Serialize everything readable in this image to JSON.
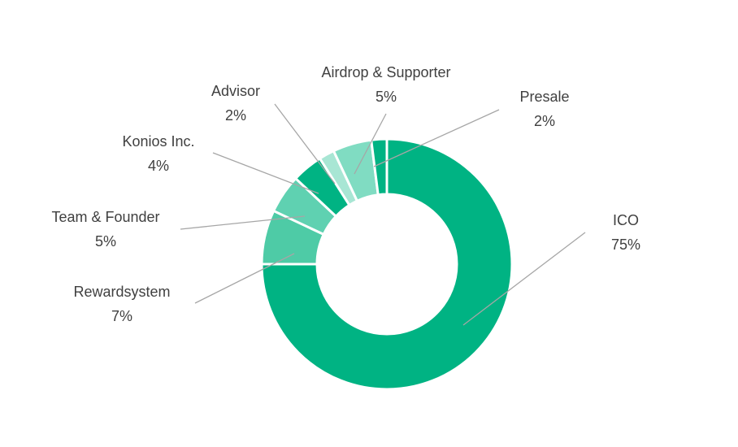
{
  "chart_data": {
    "type": "donut",
    "categories": [
      "ICO",
      "Rewardsystem",
      "Team & Founder",
      "Konios Inc.",
      "Advisor",
      "Airdrop & Supporter",
      "Presale"
    ],
    "values": [
      75,
      7,
      5,
      4,
      2,
      5,
      2
    ],
    "value_labels": [
      "75%",
      "7%",
      "5%",
      "4%",
      "2%",
      "5%",
      "2%"
    ],
    "colors": [
      "#00b383",
      "#4ecba6",
      "#5fd1b1",
      "#00b383",
      "#a8e6d4",
      "#80dcc2",
      "#00b383"
    ]
  }
}
